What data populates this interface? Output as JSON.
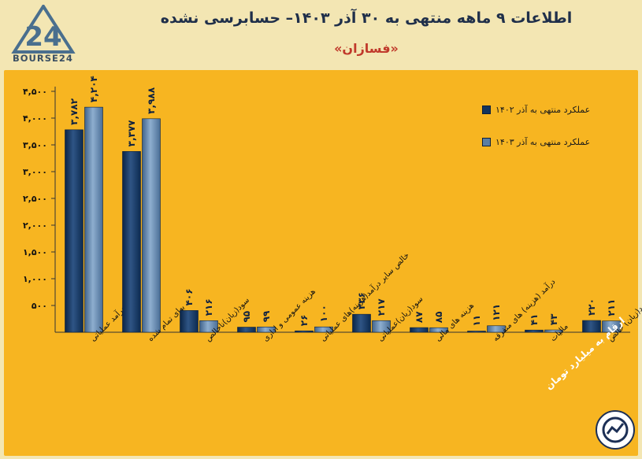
{
  "brand": {
    "logo_text": "BOURSE24",
    "logo_mark": "24"
  },
  "title": "اطلاعات ۹ ماهه منتهی به ۳۰ آذر ۱۴۰۳– حسابرسی نشده",
  "subtitle": "«فسازان»",
  "footnote": "ارقام به میلیارد تومان",
  "colors": {
    "series1": "#13345e",
    "series2": "#5b7ea3",
    "background": "#f7b521"
  },
  "chart_data": {
    "type": "bar",
    "ylim": [
      0,
      4500
    ],
    "ytick_values": [
      500,
      1000,
      1500,
      2000,
      2500,
      3000,
      3500,
      4000,
      4500
    ],
    "ytick_labels": [
      "۵۰۰",
      "۱,۰۰۰",
      "۱,۵۰۰",
      "۲,۰۰۰",
      "۲,۵۰۰",
      "۳,۰۰۰",
      "۳,۵۰۰",
      "۴,۰۰۰",
      "۴,۵۰۰"
    ],
    "categories": [
      "درآمد عملیاتی",
      "بهای تمام شده",
      "سود(زیان)ناخالص",
      "هزینه عمومی و اداری",
      "خالص سایر درآمد(هزینه)های عملیاتی",
      "سود(زیان)عملیاتی",
      "هزینه های مالی",
      "درآمد (هزینه) های متفرقه",
      "مالیات",
      "سود(زیان) خالص"
    ],
    "series": [
      {
        "name": "عملکرد منتهی به آذر ۱۴۰۲",
        "values": [
          3782,
          3377,
          406,
          95,
          26,
          336,
          87,
          11,
          41,
          220
        ],
        "labels": [
          "۳,۷۸۲",
          "۳,۳۷۷",
          "۴۰۶",
          "۹۵",
          "۲۶",
          "۳۳۶",
          "۸۷",
          "۱۱",
          "۴۱",
          "۲۲۰"
        ]
      },
      {
        "name": "عملکرد منتهی به آذر ۱۴۰۳",
        "values": [
          4204,
          3988,
          216,
          99,
          100,
          217,
          85,
          121,
          43,
          211
        ],
        "labels": [
          "۴,۲۰۴",
          "۳,۹۸۸",
          "۲۱۶",
          "۹۹",
          "۱۰۰",
          "۲۱۷",
          "۸۵",
          "۱۲۱",
          "۴۳",
          "۲۱۱"
        ]
      }
    ]
  }
}
